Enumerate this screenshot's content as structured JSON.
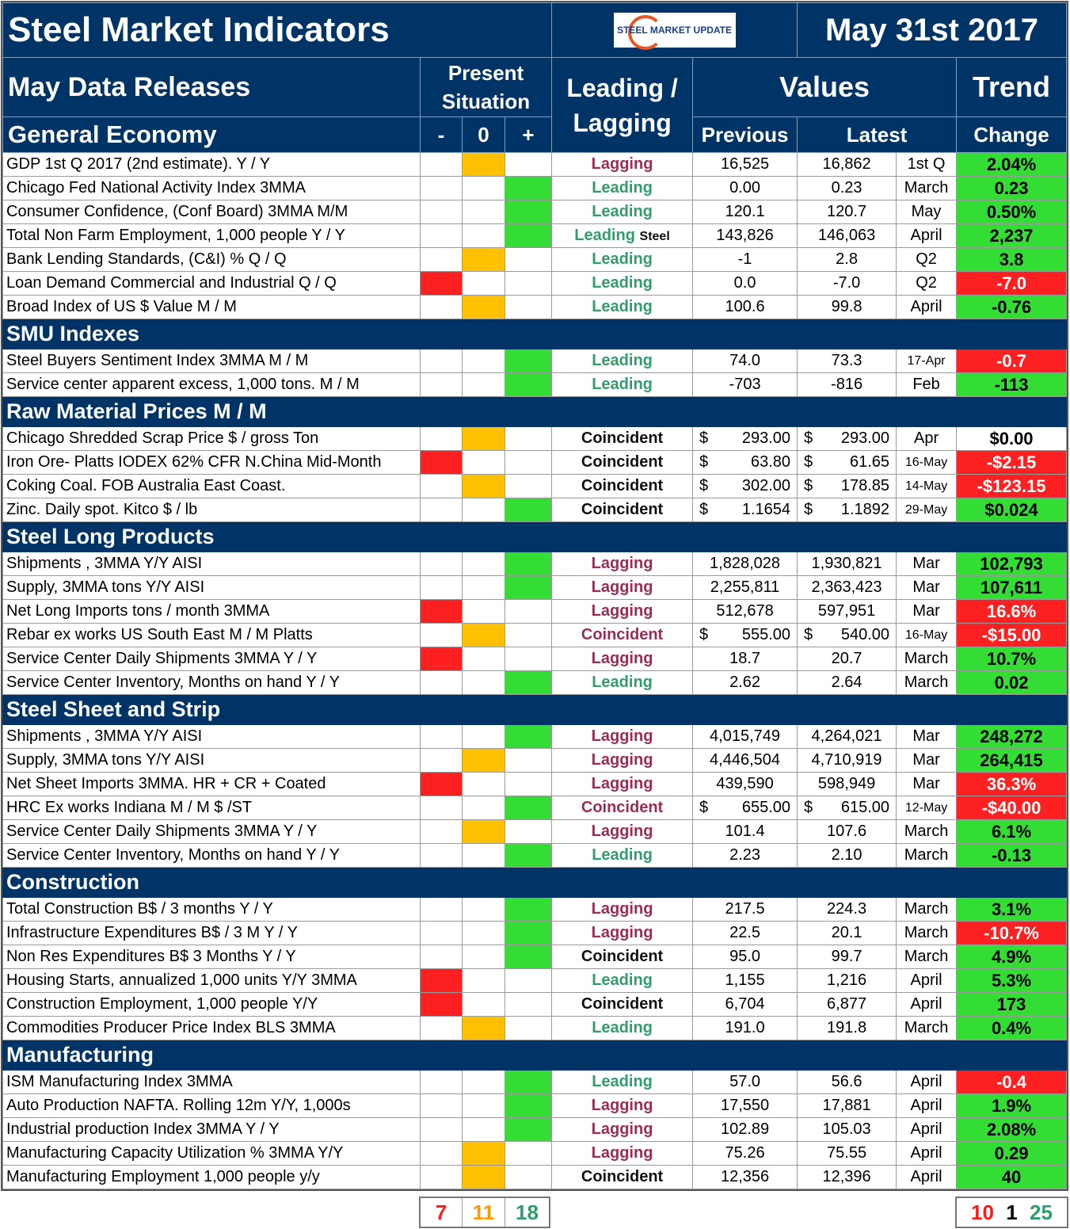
{
  "header": {
    "title": "Steel Market Indicators",
    "logo": "STEEL MARKET UPDATE",
    "date": "May 31st 2017"
  },
  "columns": {
    "releases": "May Data Releases",
    "present": "Present Situation",
    "leadlag": "Leading / Lagging",
    "values": "Values",
    "trend": "Trend",
    "minus": "-",
    "zero": "0",
    "plus": "+",
    "previous": "Previous",
    "latest": "Latest",
    "change": "Change"
  },
  "colors": {
    "positive": "#33dd33",
    "negative": "#ff2121",
    "neutral": "#ffc000",
    "header": "#003366"
  },
  "sections": [
    {
      "title": "General Economy",
      "rows": [
        {
          "label": "GDP 1st Q 2017 (2nd estimate). Y / Y",
          "sit": "0",
          "type": "Lagging",
          "prev": "16,525",
          "latest": "16,862",
          "period": "1st Q",
          "change": "2.04%",
          "cc": "g"
        },
        {
          "label": "Chicago Fed National Activity Index 3MMA",
          "sit": "+",
          "type": "Leading",
          "prev": "0.00",
          "latest": "0.23",
          "period": "March",
          "change": "0.23",
          "cc": "g"
        },
        {
          "label": "Consumer Confidence, (Conf Board) 3MMA M/M",
          "sit": "+",
          "type": "Leading",
          "prev": "120.1",
          "latest": "120.7",
          "period": "May",
          "change": "0.50%",
          "cc": "g"
        },
        {
          "label": "Total Non Farm Employment, 1,000 people Y / Y",
          "sit": "+",
          "type": "Leading",
          "extra": "Steel",
          "prev": "143,826",
          "latest": "146,063",
          "period": "April",
          "change": "2,237",
          "cc": "g"
        },
        {
          "label": "Bank Lending Standards, (C&I) % Q / Q",
          "sit": "0",
          "type": "Leading",
          "prev": "-1",
          "latest": "2.8",
          "period": "Q2",
          "change": "3.8",
          "cc": "g"
        },
        {
          "label": "Loan Demand Commercial and Industrial Q / Q",
          "sit": "-",
          "type": "Leading",
          "prev": "0.0",
          "latest": "-7.0",
          "period": "Q2",
          "change": "-7.0",
          "cc": "r"
        },
        {
          "label": "Broad Index of US $ Value M / M",
          "sit": "0",
          "type": "Leading",
          "prev": "100.6",
          "latest": "99.8",
          "period": "April",
          "change": "-0.76",
          "cc": "g"
        }
      ]
    },
    {
      "title": "SMU Indexes",
      "rows": [
        {
          "label": "Steel Buyers Sentiment Index 3MMA M / M",
          "sit": "+",
          "type": "Leading",
          "prev": "74.0",
          "latest": "73.3",
          "period": "17-Apr",
          "change": "-0.7",
          "cc": "r"
        },
        {
          "label": "Service center apparent excess, 1,000 tons. M / M",
          "sit": "+",
          "type": "Leading",
          "prev": "-703",
          "latest": "-816",
          "period": "Feb",
          "change": "-113",
          "cc": "g"
        }
      ]
    },
    {
      "title": "Raw Material Prices M / M",
      "rows": [
        {
          "label": "Chicago Shredded Scrap Price $ / gross Ton",
          "sit": "0",
          "type": "Coincident",
          "cur": "$",
          "prev": "293.00",
          "latest": "293.00",
          "period": "Apr",
          "change": "$0.00",
          "cc": "w"
        },
        {
          "label": "Iron Ore- Platts IODEX 62% CFR N.China Mid-Month",
          "sit": "-",
          "type": "Coincident",
          "cur": "$",
          "prev": "63.80",
          "latest": "61.65",
          "period": "16-May",
          "change": "-$2.15",
          "cc": "r"
        },
        {
          "label": "Coking Coal. FOB Australia East Coast.",
          "sit": "0",
          "type": "Coincident",
          "cur": "$",
          "prev": "302.00",
          "latest": "178.85",
          "period": "14-May",
          "change": "-$123.15",
          "cc": "r"
        },
        {
          "label": "Zinc. Daily spot. Kitco $ / lb",
          "sit": "+",
          "type": "Coincident",
          "cur": "$",
          "prev": "1.1654",
          "latest": "1.1892",
          "period": "29-May",
          "change": "$0.024",
          "cc": "g"
        }
      ]
    },
    {
      "title": "Steel Long Products",
      "rows": [
        {
          "label": "Shipments , 3MMA Y/Y AISI",
          "sit": "+",
          "type": "Lagging",
          "prev": "1,828,028",
          "latest": "1,930,821",
          "period": "Mar",
          "change": "102,793",
          "cc": "g"
        },
        {
          "label": "Supply, 3MMA tons Y/Y AISI",
          "sit": "+",
          "type": "Lagging",
          "prev": "2,255,811",
          "latest": "2,363,423",
          "period": "Mar",
          "change": "107,611",
          "cc": "g"
        },
        {
          "label": "Net Long Imports tons / month 3MMA",
          "sit": "-",
          "type": "Lagging",
          "prev": "512,678",
          "latest": "597,951",
          "period": "Mar",
          "change": "16.6%",
          "cc": "r"
        },
        {
          "label": "Rebar ex works US South East M / M Platts",
          "sit": "0",
          "type": "Coincident",
          "p": 1,
          "cur": "$",
          "prev": "555.00",
          "latest": "540.00",
          "period": "16-May",
          "change": "-$15.00",
          "cc": "r"
        },
        {
          "label": "Service Center Daily Shipments 3MMA Y / Y",
          "sit": "-",
          "type": "Lagging",
          "prev": "18.7",
          "latest": "20.7",
          "period": "March",
          "change": "10.7%",
          "cc": "g"
        },
        {
          "label": "Service Center Inventory, Months on hand Y / Y",
          "sit": "+",
          "type": "Leading",
          "prev": "2.62",
          "latest": "2.64",
          "period": "March",
          "change": "0.02",
          "cc": "g"
        }
      ]
    },
    {
      "title": "Steel Sheet and Strip",
      "rows": [
        {
          "label": "Shipments , 3MMA Y/Y AISI",
          "sit": "+",
          "type": "Lagging",
          "prev": "4,015,749",
          "latest": "4,264,021",
          "period": "Mar",
          "change": "248,272",
          "cc": "g"
        },
        {
          "label": "Supply, 3MMA tons Y/Y AISI",
          "sit": "0",
          "type": "Lagging",
          "prev": "4,446,504",
          "latest": "4,710,919",
          "period": "Mar",
          "change": "264,415",
          "cc": "g"
        },
        {
          "label": "Net Sheet Imports  3MMA. HR + CR + Coated",
          "sit": "-",
          "type": "Lagging",
          "prev": "439,590",
          "latest": "598,949",
          "period": "Mar",
          "change": "36.3%",
          "cc": "r"
        },
        {
          "label": "HRC Ex works Indiana M / M $ /ST",
          "sit": "+",
          "type": "Coincident",
          "p": 1,
          "cur": "$",
          "prev": "655.00",
          "latest": "615.00",
          "period": "12-May",
          "change": "-$40.00",
          "cc": "r"
        },
        {
          "label": "Service Center Daily Shipments 3MMA Y / Y",
          "sit": "0",
          "type": "Lagging",
          "prev": "101.4",
          "latest": "107.6",
          "period": "March",
          "change": "6.1%",
          "cc": "g"
        },
        {
          "label": "Service Center Inventory, Months on hand Y / Y",
          "sit": "+",
          "type": "Leading",
          "prev": "2.23",
          "latest": "2.10",
          "period": "March",
          "change": "-0.13",
          "cc": "g"
        }
      ]
    },
    {
      "title": "Construction",
      "rows": [
        {
          "label": "Total Construction B$ /  3 months Y / Y",
          "sit": "+",
          "type": "Lagging",
          "prev": "217.5",
          "latest": "224.3",
          "period": "March",
          "change": "3.1%",
          "cc": "g"
        },
        {
          "label": "Infrastructure Expenditures B$ / 3 M    Y / Y",
          "sit": "+",
          "type": "Lagging",
          "prev": "22.5",
          "latest": "20.1",
          "period": "March",
          "change": "-10.7%",
          "cc": "r"
        },
        {
          "label": "Non Res Expenditures B$  3 Months   Y / Y",
          "sit": "+",
          "type": "Coincident",
          "prev": "95.0",
          "latest": "99.7",
          "period": "March",
          "change": "4.9%",
          "cc": "g"
        },
        {
          "label": "Housing Starts, annualized 1,000 units Y/Y 3MMA",
          "sit": "-",
          "type": "Leading",
          "prev": "1,155",
          "latest": "1,216",
          "period": "April",
          "change": "5.3%",
          "cc": "g"
        },
        {
          "label": "Construction Employment, 1,000 people Y/Y",
          "sit": "-",
          "type": "Coincident",
          "prev": "6,704",
          "latest": "6,877",
          "period": "April",
          "change": "173",
          "cc": "g"
        },
        {
          "label": "Commodities Producer Price Index BLS 3MMA",
          "sit": "0",
          "type": "Leading",
          "prev": "191.0",
          "latest": "191.8",
          "period": "March",
          "change": "0.4%",
          "cc": "g"
        }
      ]
    },
    {
      "title": "Manufacturing",
      "rows": [
        {
          "label": "ISM Manufacturing Index 3MMA",
          "sit": "+",
          "type": "Leading",
          "prev": "57.0",
          "latest": "56.6",
          "period": "April",
          "change": "-0.4",
          "cc": "r"
        },
        {
          "label": "Auto Production NAFTA. Rolling 12m Y/Y, 1,000s",
          "sit": "+",
          "type": "Lagging",
          "prev": "17,550",
          "latest": "17,881",
          "period": "April",
          "change": "1.9%",
          "cc": "g"
        },
        {
          "label": "Industrial production Index 3MMA Y / Y",
          "sit": "+",
          "type": "Lagging",
          "prev": "102.89",
          "latest": "105.03",
          "period": "April",
          "change": "2.08%",
          "cc": "g"
        },
        {
          "label": "Manufacturing Capacity Utilization % 3MMA Y/Y",
          "sit": "0",
          "type": "Lagging",
          "prev": "75.26",
          "latest": "75.55",
          "period": "April",
          "change": "0.29",
          "cc": "g"
        },
        {
          "label": "Manufacturing Employment 1,000 people y/y",
          "sit": "0",
          "type": "Coincident",
          "prev": "12,356",
          "latest": "12,396",
          "period": "April",
          "change": "40",
          "cc": "g"
        }
      ]
    }
  ],
  "summary": {
    "situation": {
      "negative": "7",
      "neutral": "11",
      "positive": "18"
    },
    "trend": {
      "negative": "10",
      "neutral": "1",
      "positive": "25"
    }
  }
}
